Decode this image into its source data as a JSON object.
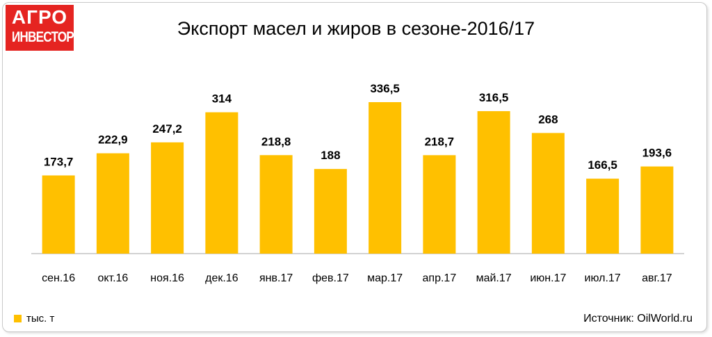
{
  "logo": {
    "line1": "АГРО",
    "line2": "ИНВЕСТОР"
  },
  "source": "Источник: OilWorld.ru",
  "chart_data": {
    "type": "bar",
    "title": "Экспорт масел и жиров в сезоне-2016/17",
    "categories": [
      "сен.16",
      "окт.16",
      "ноя.16",
      "дек.16",
      "янв.17",
      "фев.17",
      "мар.17",
      "апр.17",
      "май.17",
      "июн.17",
      "июл.17",
      "авг.17"
    ],
    "series": [
      {
        "name": "тыс. т",
        "values": [
          173.7,
          222.9,
          247.2,
          314,
          218.8,
          188,
          336.5,
          218.7,
          316.5,
          268,
          166.5,
          193.6
        ],
        "labels": [
          "173,7",
          "222,9",
          "247,2",
          "314",
          "218,8",
          "188",
          "336,5",
          "218,7",
          "316,5",
          "268",
          "166,5",
          "193,6"
        ],
        "color": "#FFC000"
      }
    ],
    "ylim": [
      0,
      336.5
    ],
    "grid": false,
    "legend": "bottom-left"
  }
}
